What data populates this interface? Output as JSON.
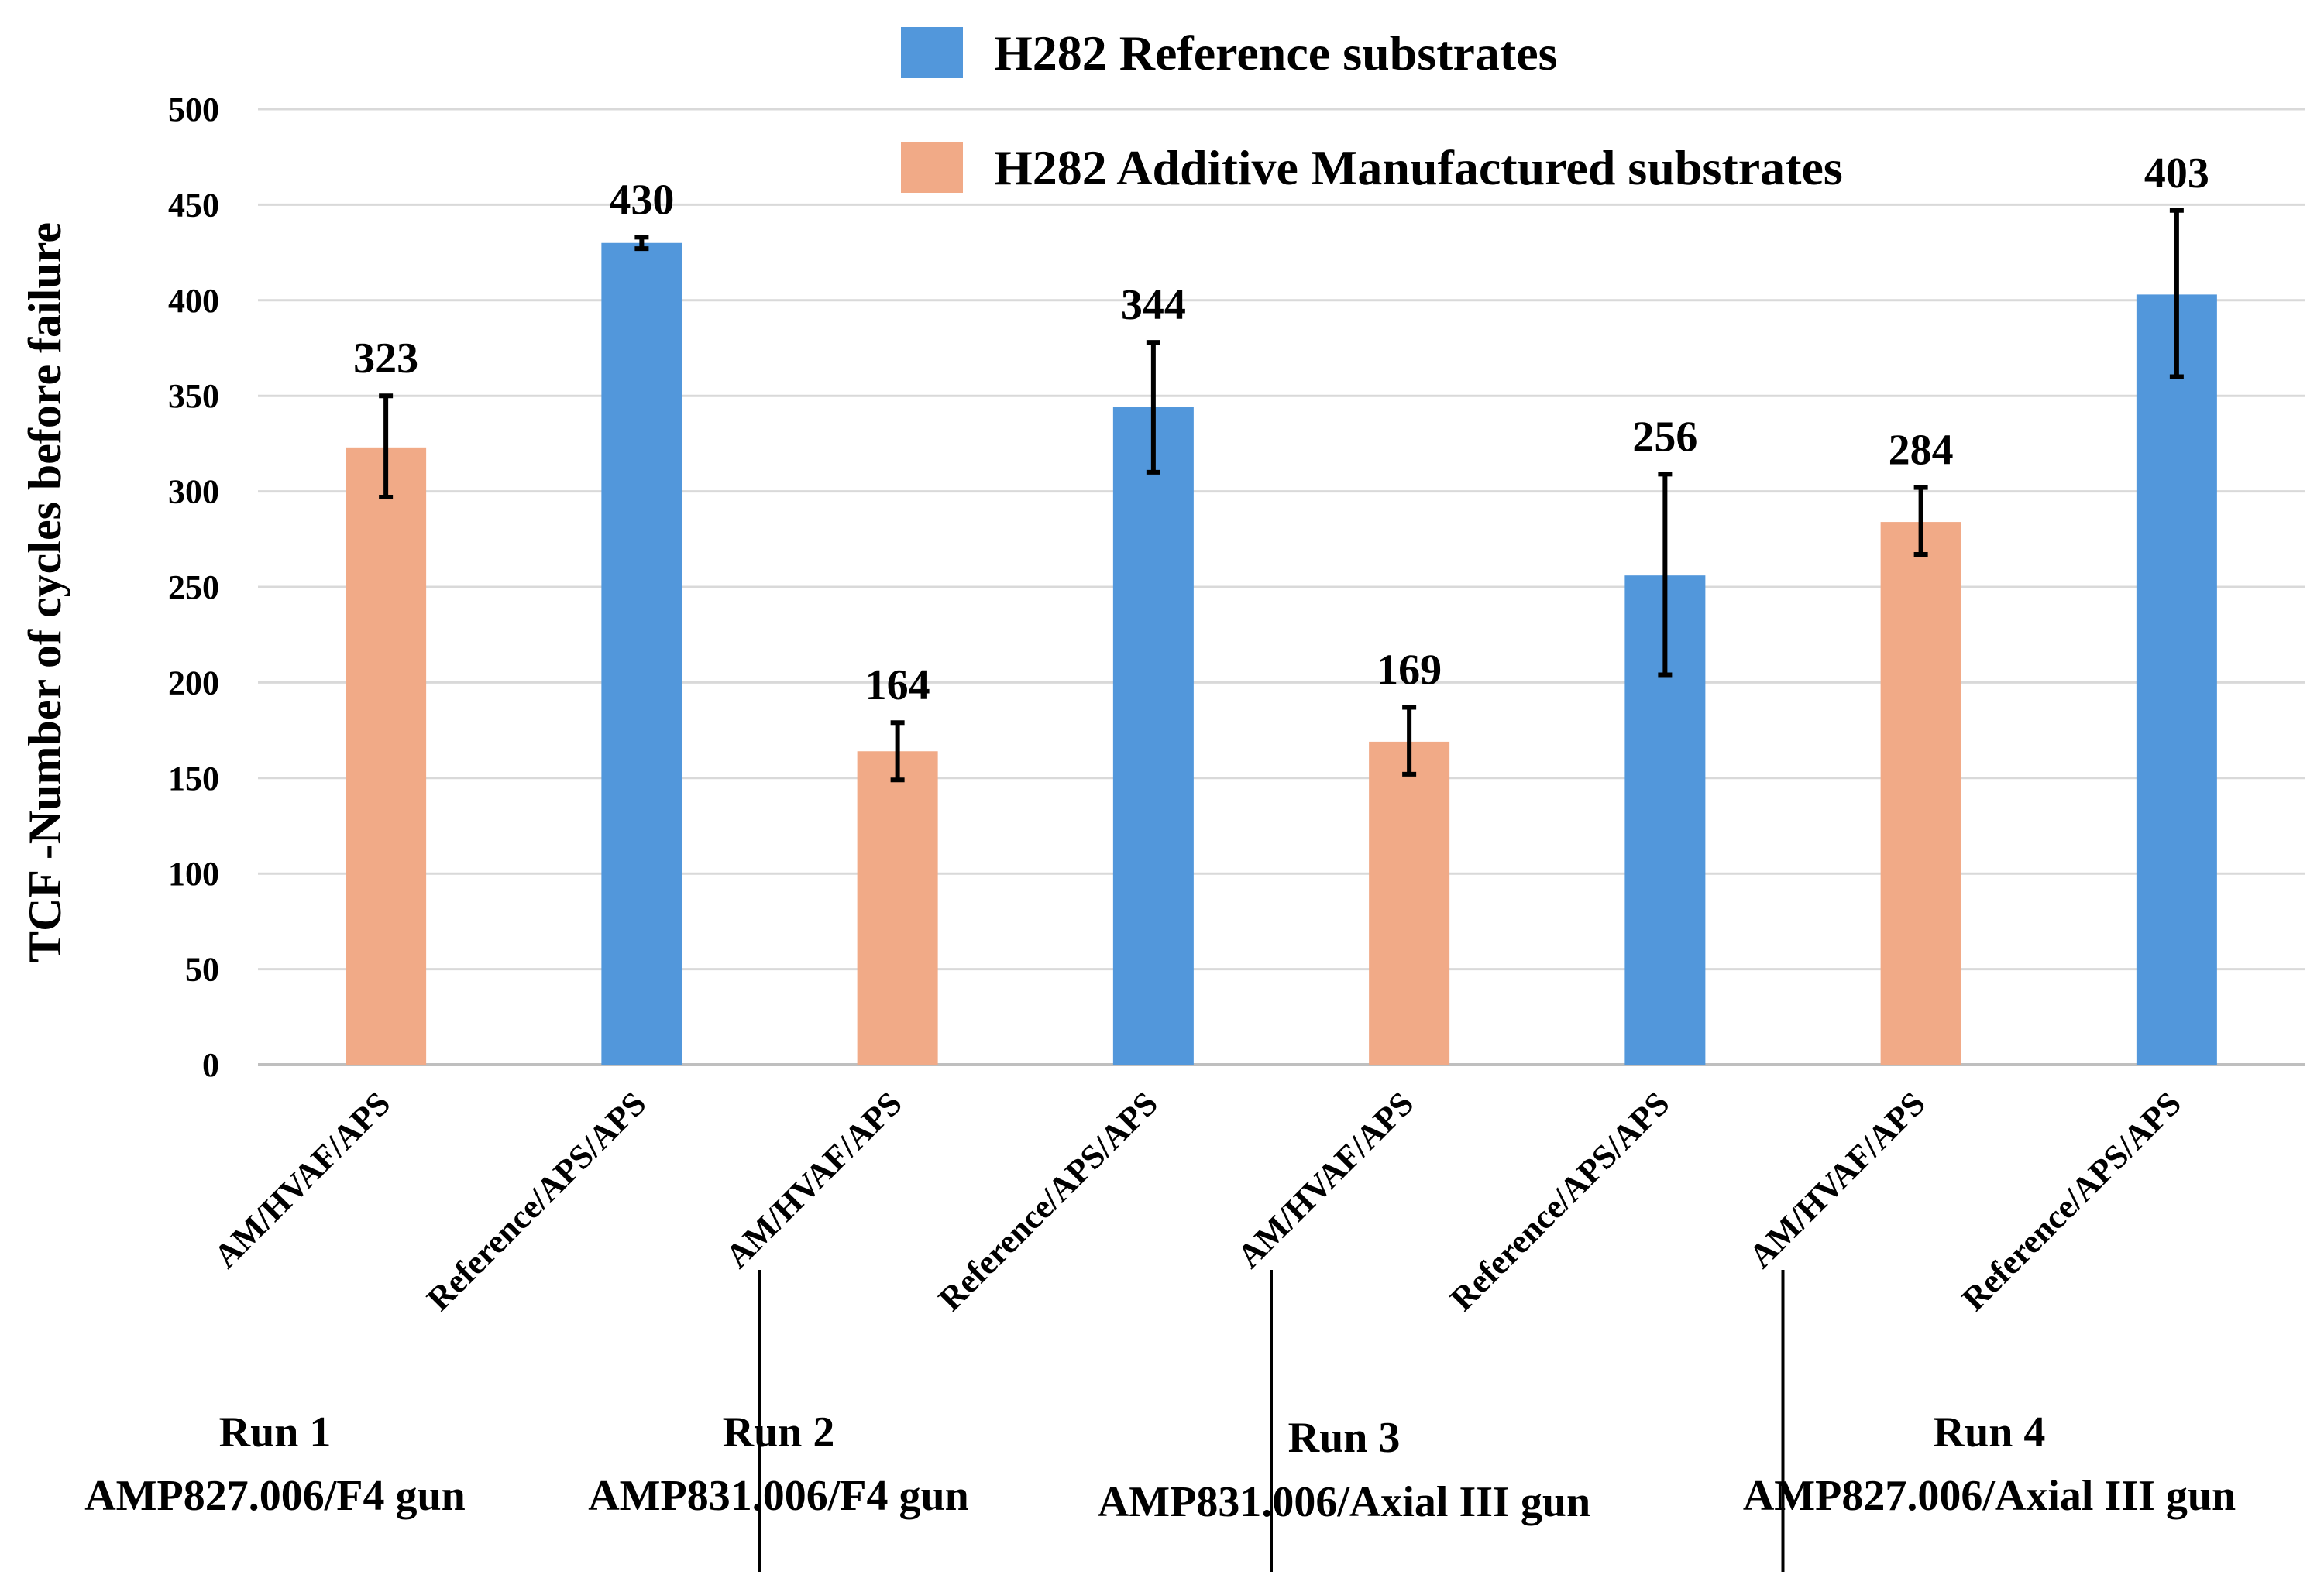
{
  "chart_data": {
    "type": "bar",
    "title": "",
    "ylabel": "TCF -Number of cycles before failure",
    "xlabel": "",
    "ylim": [
      0,
      500
    ],
    "yticks": [
      0,
      50,
      100,
      150,
      200,
      250,
      300,
      350,
      400,
      450,
      500
    ],
    "grid": true,
    "legend_position": "top-center",
    "legend": [
      {
        "name": "H282 Reference substrates",
        "color": "#5297DB"
      },
      {
        "name": "H282 Additive Manufactured substrates",
        "color": "#F1AA87"
      }
    ],
    "categories": [
      "AM/HVAF/APS",
      "Reference/APS/APS",
      "AM/HVAF/APS",
      "Reference/APS/APS",
      "AM/HVAF/APS",
      "Reference/APS/APS",
      "AM/HVAF/APS",
      "Reference/APS/APS"
    ],
    "bars": [
      {
        "series": "H282 Additive Manufactured substrates",
        "value": 323,
        "err_low": 297,
        "err_high": 350,
        "label": "323"
      },
      {
        "series": "H282 Reference substrates",
        "value": 430,
        "err_low": 427,
        "err_high": 433,
        "label": "430"
      },
      {
        "series": "H282 Additive Manufactured substrates",
        "value": 164,
        "err_low": 149,
        "err_high": 179,
        "label": "164"
      },
      {
        "series": "H282 Reference substrates",
        "value": 344,
        "err_low": 310,
        "err_high": 378,
        "label": "344"
      },
      {
        "series": "H282 Additive Manufactured substrates",
        "value": 169,
        "err_low": 152,
        "err_high": 187,
        "label": "169"
      },
      {
        "series": "H282 Reference substrates",
        "value": 256,
        "err_low": 204,
        "err_high": 309,
        "label": "256"
      },
      {
        "series": "H282 Additive Manufactured substrates",
        "value": 284,
        "err_low": 267,
        "err_high": 302,
        "label": "284"
      },
      {
        "series": "H282 Reference substrates",
        "value": 403,
        "err_low": 360,
        "err_high": 447,
        "label": "403"
      }
    ],
    "groups": [
      {
        "run": "Run 1",
        "setup": "AMP827.006/F4 gun"
      },
      {
        "run": "Run 2",
        "setup": "AMP831.006/F4 gun"
      },
      {
        "run": "Run 3",
        "setup": "AMP831.006/Axial III gun"
      },
      {
        "run": "Run 4",
        "setup": "AMP827.006/Axial III gun"
      }
    ]
  }
}
